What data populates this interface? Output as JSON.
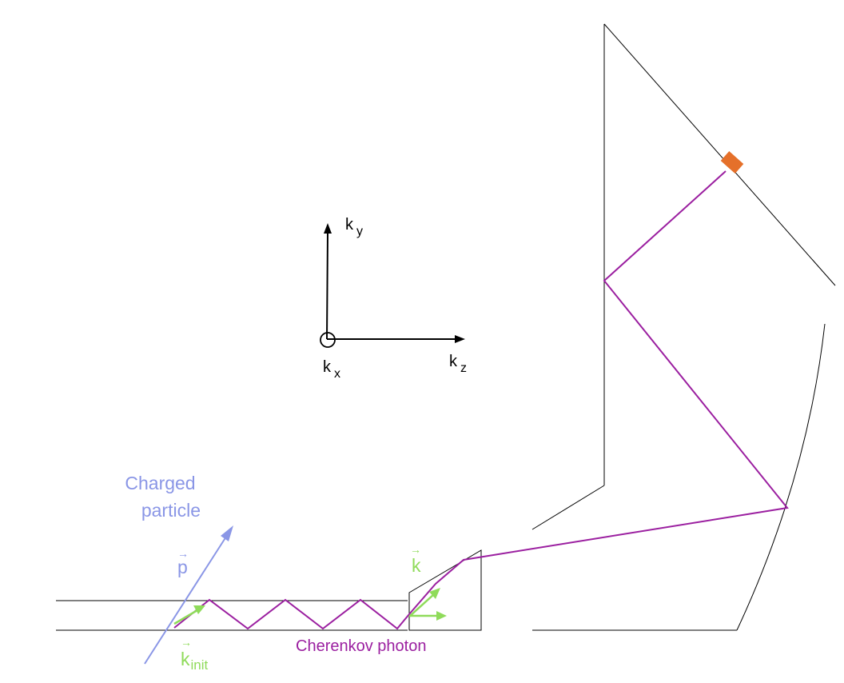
{
  "axes": {
    "ky": {
      "main": "k",
      "sub": "y"
    },
    "kx": {
      "main": "k",
      "sub": "x"
    },
    "kz": {
      "main": "k",
      "sub": "z"
    }
  },
  "particle": {
    "label_line1": "Charged",
    "label_line2": "particle",
    "momentum_label": "p",
    "vector_arrow": "⃗"
  },
  "photon": {
    "initial_label_main": "k",
    "initial_label_sub": "init",
    "label": "k",
    "name": "Cherenkov photon"
  },
  "colors": {
    "particle": "#8a96e6",
    "photon_path": "#9b1fa0",
    "vectors": "#8fdb5a",
    "detector": "#e5702a",
    "lines": "#000000"
  }
}
